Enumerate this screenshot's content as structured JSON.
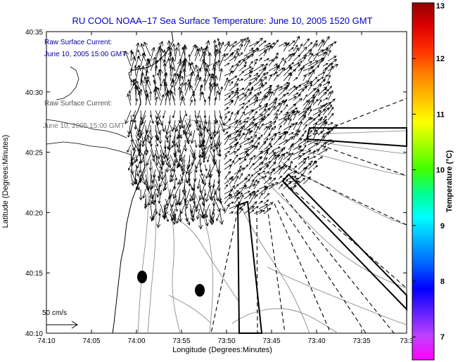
{
  "title": "RU COOL  NOAA–17  Sea Surface Temperature:  June 10, 2005 1520 GMT",
  "legend": {
    "line1": "Raw Surface Current:",
    "line2": "June 10, 2005 15:00 GMT"
  },
  "scale_label": "50 cm/s",
  "axes": {
    "xlabel": "Longitude (Degrees:Minutes)",
    "ylabel": "Latitude (Degrees:Minutes)",
    "xticks": [
      "74:10",
      "74:05",
      "74:00",
      "73:55",
      "73:50",
      "73:45",
      "73:40",
      "73:35",
      "73:3"
    ],
    "yticks": [
      "40:35",
      "40:30",
      "40:25",
      "40:20",
      "40:15",
      "40:10"
    ]
  },
  "colorbar": {
    "label": "Temperature (°C)",
    "ticks": [
      "13",
      "12",
      "11",
      "10",
      "9",
      "8",
      "7"
    ],
    "colors": [
      "#ff00ff",
      "#c040ff",
      "#6020ff",
      "#0000ff",
      "#0060ff",
      "#00b0ff",
      "#00ffff",
      "#00ff90",
      "#40ff00",
      "#a0ff00",
      "#ffff00",
      "#ffc000",
      "#ff8000",
      "#ff3000",
      "#e00000",
      "#900000"
    ]
  },
  "map_features": {
    "current_color": "#000000",
    "contour_color": "#808080",
    "markers": 2
  }
}
